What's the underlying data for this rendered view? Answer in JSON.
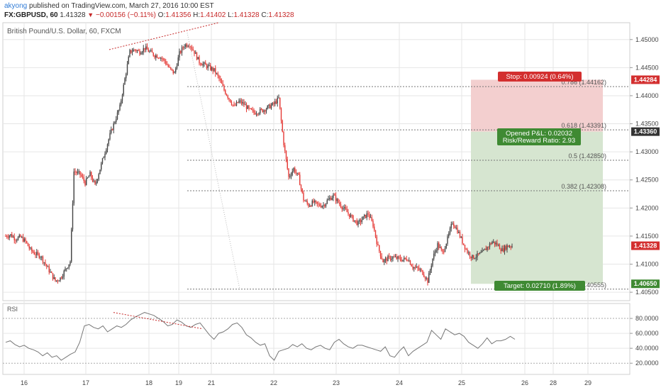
{
  "header": {
    "author": "akyong",
    "published": "published on TradingView.com, March 27, 2016 10:00 EST",
    "symbol": "FX:GBPUSD, 60",
    "last": "1.41328",
    "change": "−0.00156 (−0.11%)",
    "o_label": "O:",
    "o_val": "1.41356",
    "h_label": "H:",
    "h_val": "1.41402",
    "l_label": "L:",
    "l_val": "1.41328",
    "c_label": "C:",
    "c_val": "1.41328"
  },
  "chart_title": "British Pound/U.S. Dollar, 60, FXCM",
  "rsi_label": "RSI",
  "colors": {
    "up": "#444444",
    "down": "#e53935",
    "stop_zone": "#f3cfcf",
    "target_zone": "#d6e5d0",
    "stop_badge": "#d32f2f",
    "target_badge": "#3f8a33",
    "grid": "#e6e6e6"
  },
  "chart_data": {
    "type": "candlestick",
    "price_axis": {
      "ticks": [
        "1.45000",
        "1.44500",
        "1.44000",
        "1.43500",
        "1.43000",
        "1.42500",
        "1.42000",
        "1.41500",
        "1.41000",
        "1.40500"
      ],
      "min": 1.4035,
      "max": 1.453
    },
    "x_ticks": [
      "16",
      "17",
      "18",
      "19",
      "21",
      "22",
      "23",
      "24",
      "25",
      "26",
      "28",
      "29"
    ],
    "close_path": [
      [
        0,
        1.415
      ],
      [
        4,
        1.4152
      ],
      [
        8,
        1.4145
      ],
      [
        12,
        1.4148
      ],
      [
        16,
        1.414
      ],
      [
        20,
        1.4125
      ],
      [
        24,
        1.4118
      ],
      [
        28,
        1.4115
      ],
      [
        32,
        1.41
      ],
      [
        36,
        1.4085
      ],
      [
        40,
        1.407
      ],
      [
        44,
        1.4075
      ],
      [
        48,
        1.409
      ],
      [
        52,
        1.4105
      ],
      [
        55,
        1.4265
      ],
      [
        60,
        1.426
      ],
      [
        64,
        1.4245
      ],
      [
        68,
        1.426
      ],
      [
        72,
        1.424
      ],
      [
        76,
        1.427
      ],
      [
        80,
        1.43
      ],
      [
        84,
        1.433
      ],
      [
        88,
        1.4355
      ],
      [
        92,
        1.438
      ],
      [
        96,
        1.443
      ],
      [
        100,
        1.4478
      ],
      [
        104,
        1.4482
      ],
      [
        108,
        1.4478
      ],
      [
        112,
        1.4485
      ],
      [
        116,
        1.4478
      ],
      [
        120,
        1.4472
      ],
      [
        124,
        1.447
      ],
      [
        128,
        1.4462
      ],
      [
        132,
        1.4448
      ],
      [
        136,
        1.444
      ],
      [
        140,
        1.4475
      ],
      [
        144,
        1.449
      ],
      [
        148,
        1.4492
      ],
      [
        152,
        1.4478
      ],
      [
        156,
        1.446
      ],
      [
        160,
        1.4455
      ],
      [
        164,
        1.445
      ],
      [
        168,
        1.4445
      ],
      [
        172,
        1.443
      ],
      [
        176,
        1.441
      ],
      [
        180,
        1.4395
      ],
      [
        184,
        1.438
      ],
      [
        188,
        1.439
      ],
      [
        192,
        1.4385
      ],
      [
        196,
        1.4375
      ],
      [
        200,
        1.437
      ],
      [
        204,
        1.4372
      ],
      [
        208,
        1.4375
      ],
      [
        212,
        1.438
      ],
      [
        216,
        1.4385
      ],
      [
        220,
        1.4395
      ],
      [
        224,
        1.4315
      ],
      [
        228,
        1.4255
      ],
      [
        232,
        1.427
      ],
      [
        236,
        1.4255
      ],
      [
        240,
        1.4215
      ],
      [
        244,
        1.4205
      ],
      [
        248,
        1.421
      ],
      [
        252,
        1.4205
      ],
      [
        256,
        1.4205
      ],
      [
        260,
        1.4215
      ],
      [
        264,
        1.4222
      ],
      [
        268,
        1.421
      ],
      [
        272,
        1.42
      ],
      [
        276,
        1.419
      ],
      [
        280,
        1.418
      ],
      [
        284,
        1.4172
      ],
      [
        288,
        1.4182
      ],
      [
        292,
        1.419
      ],
      [
        296,
        1.417
      ],
      [
        300,
        1.413
      ],
      [
        304,
        1.4105
      ],
      [
        308,
        1.411
      ],
      [
        312,
        1.4112
      ],
      [
        316,
        1.411
      ],
      [
        320,
        1.4108
      ],
      [
        324,
        1.411
      ],
      [
        328,
        1.4095
      ],
      [
        332,
        1.4092
      ],
      [
        336,
        1.4085
      ],
      [
        340,
        1.407
      ],
      [
        344,
        1.411
      ],
      [
        348,
        1.4135
      ],
      [
        352,
        1.412
      ],
      [
        356,
        1.4145
      ],
      [
        360,
        1.4175
      ],
      [
        364,
        1.416
      ],
      [
        368,
        1.414
      ],
      [
        372,
        1.4122
      ],
      [
        376,
        1.4112
      ],
      [
        380,
        1.4115
      ],
      [
        384,
        1.412
      ],
      [
        388,
        1.413
      ],
      [
        392,
        1.414
      ],
      [
        396,
        1.4135
      ],
      [
        400,
        1.4125
      ],
      [
        404,
        1.4132
      ],
      [
        408,
        1.4133
      ]
    ],
    "fibonacci": [
      {
        "ratio": "0.786",
        "price": "(1.44162)",
        "value": 1.44162
      },
      {
        "ratio": "0.618",
        "price": "(1.43391)",
        "value": 1.43391
      },
      {
        "ratio": "0.5",
        "price": "(1.42850)",
        "value": 1.4285
      },
      {
        "ratio": "0.382",
        "price": "(1.42308)",
        "value": 1.42308
      },
      {
        "ratio": "0",
        "price": "(1.40555)",
        "value": 1.40555
      }
    ],
    "position": {
      "stop_text": "Stop: 0.00924 (0.64%)",
      "pnl_text": "Opened P&L: 0.02032",
      "rr_text": "Risk/Reward Ratio: 2.93",
      "target_text": "Target: 0.02710 (1.89%)",
      "stop_price": 1.44284,
      "entry_price": 1.4336,
      "target_price": 1.4065
    },
    "price_badges": [
      {
        "text": "1.44284",
        "value": 1.44284,
        "color": "#d32f2f"
      },
      {
        "text": "1.43360",
        "value": 1.4336,
        "color": "#333333"
      },
      {
        "text": "1.41328",
        "value": 1.41328,
        "color": "#d32f2f"
      },
      {
        "text": "1.40650",
        "value": 1.4065,
        "color": "#3f8a33"
      }
    ],
    "rsi": {
      "ticks": [
        "80.0000",
        "60.0000",
        "40.0000",
        "20.0000"
      ],
      "min": 5,
      "max": 100,
      "values": [
        48,
        50,
        45,
        42,
        44,
        40,
        38,
        35,
        30,
        34,
        28,
        30,
        24,
        28,
        32,
        35,
        48,
        70,
        72,
        68,
        66,
        70,
        62,
        66,
        70,
        68,
        72,
        78,
        82,
        85,
        88,
        86,
        84,
        80,
        76,
        70,
        72,
        78,
        75,
        70,
        68,
        72,
        74,
        66,
        58,
        52,
        60,
        62,
        66,
        72,
        74,
        68,
        58,
        54,
        48,
        44,
        46,
        30,
        24,
        36,
        38,
        40,
        45,
        42,
        46,
        40,
        38,
        42,
        44,
        40,
        38,
        48,
        52,
        46,
        42,
        40,
        44,
        44,
        42,
        40,
        38,
        36,
        42,
        30,
        28,
        36,
        42,
        30,
        36,
        40,
        44,
        48,
        64,
        58,
        52,
        66,
        62,
        58,
        60,
        56,
        48,
        44,
        40,
        46,
        54,
        46,
        50,
        50,
        52,
        56,
        52
      ]
    }
  }
}
